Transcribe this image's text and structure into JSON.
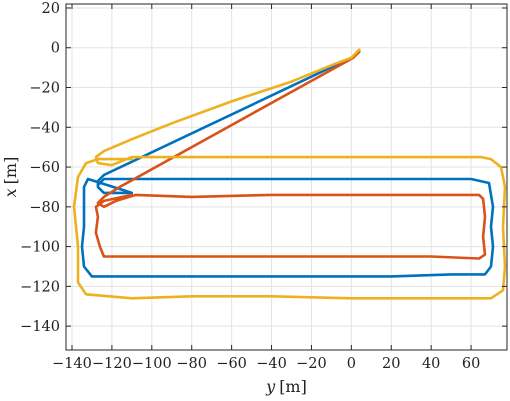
{
  "chart_data": {
    "type": "line",
    "title": "",
    "xlabel": "y [m]",
    "ylabel": "x [m]",
    "xlabel_var": "y",
    "xlabel_unit": "[m]",
    "ylabel_var": "x",
    "ylabel_unit": "[m]",
    "xlim": [
      -143,
      78
    ],
    "ylim": [
      -152,
      22
    ],
    "xticks": [
      -140,
      -120,
      -100,
      -80,
      -60,
      -40,
      -20,
      0,
      20,
      40,
      60
    ],
    "yticks": [
      20,
      0,
      -20,
      -40,
      -60,
      -80,
      -100,
      -120,
      -140
    ],
    "xtick_labels": [
      "−140",
      "−120",
      "−100",
      "−80",
      "−60",
      "−40",
      "−20",
      "0",
      "20",
      "40",
      "60"
    ],
    "ytick_labels": [
      "20",
      "0",
      "−20",
      "−40",
      "−60",
      "−80",
      "−100",
      "−120",
      "−140"
    ],
    "grid": true,
    "series": [
      {
        "color": "#0072BD",
        "points": [
          [
            3,
            -3
          ],
          [
            0,
            -5
          ],
          [
            -124,
            -64
          ],
          [
            -127,
            -67
          ],
          [
            -127,
            -70
          ],
          [
            -124,
            -73
          ],
          [
            -110,
            -73
          ],
          [
            -132,
            -66
          ],
          [
            -134,
            -70
          ],
          [
            -134,
            -90
          ],
          [
            -135,
            -100
          ],
          [
            -134,
            -110
          ],
          [
            -130,
            -115
          ],
          [
            -100,
            -115
          ],
          [
            -60,
            -115
          ],
          [
            -20,
            -115
          ],
          [
            20,
            -115
          ],
          [
            50,
            -114
          ],
          [
            67,
            -114
          ],
          [
            70,
            -110
          ],
          [
            71,
            -100
          ],
          [
            70,
            -90
          ],
          [
            71,
            -80
          ],
          [
            69,
            -68
          ],
          [
            60,
            -66
          ],
          [
            20,
            -66
          ],
          [
            -20,
            -66
          ],
          [
            -60,
            -66
          ],
          [
            -100,
            -66
          ],
          [
            -124,
            -66
          ],
          [
            -127,
            -69
          ]
        ]
      },
      {
        "color": "#D95319",
        "points": [
          [
            4,
            -2
          ],
          [
            1,
            -5
          ],
          [
            -116,
            -70
          ],
          [
            -124,
            -75
          ],
          [
            -127,
            -78
          ],
          [
            -124,
            -80
          ],
          [
            -118,
            -77
          ],
          [
            -108,
            -74
          ],
          [
            -80,
            -75
          ],
          [
            -40,
            -74
          ],
          [
            0,
            -74
          ],
          [
            40,
            -74
          ],
          [
            64,
            -74
          ],
          [
            66,
            -76
          ],
          [
            67,
            -85
          ],
          [
            66,
            -95
          ],
          [
            67,
            -104
          ],
          [
            64,
            -106
          ],
          [
            40,
            -105
          ],
          [
            0,
            -105
          ],
          [
            -40,
            -105
          ],
          [
            -80,
            -105
          ],
          [
            -124,
            -105
          ],
          [
            -126,
            -100
          ],
          [
            -128,
            -93
          ],
          [
            -127,
            -85
          ],
          [
            -128,
            -80
          ],
          [
            -124,
            -77
          ],
          [
            -110,
            -74
          ]
        ]
      },
      {
        "color": "#EDB120",
        "points": [
          [
            4,
            -1
          ],
          [
            0,
            -5
          ],
          [
            -8,
            -8
          ],
          [
            -30,
            -17
          ],
          [
            -60,
            -27
          ],
          [
            -90,
            -38
          ],
          [
            -110,
            -46
          ],
          [
            -124,
            -52
          ],
          [
            -128,
            -55
          ],
          [
            -127,
            -58
          ],
          [
            -120,
            -59
          ],
          [
            -110,
            -55
          ],
          [
            -80,
            -55
          ],
          [
            -40,
            -55
          ],
          [
            0,
            -55
          ],
          [
            40,
            -55
          ],
          [
            65,
            -55
          ],
          [
            70,
            -56
          ],
          [
            75,
            -60
          ],
          [
            77,
            -70
          ],
          [
            76,
            -90
          ],
          [
            77,
            -110
          ],
          [
            76,
            -122
          ],
          [
            70,
            -126
          ],
          [
            40,
            -126
          ],
          [
            0,
            -126
          ],
          [
            -40,
            -125
          ],
          [
            -80,
            -125
          ],
          [
            -110,
            -126
          ],
          [
            -133,
            -124
          ],
          [
            -137,
            -118
          ],
          [
            -137,
            -100
          ],
          [
            -139,
            -80
          ],
          [
            -137,
            -65
          ],
          [
            -133,
            -58
          ],
          [
            -127,
            -56
          ],
          [
            -110,
            -56
          ]
        ]
      }
    ]
  }
}
